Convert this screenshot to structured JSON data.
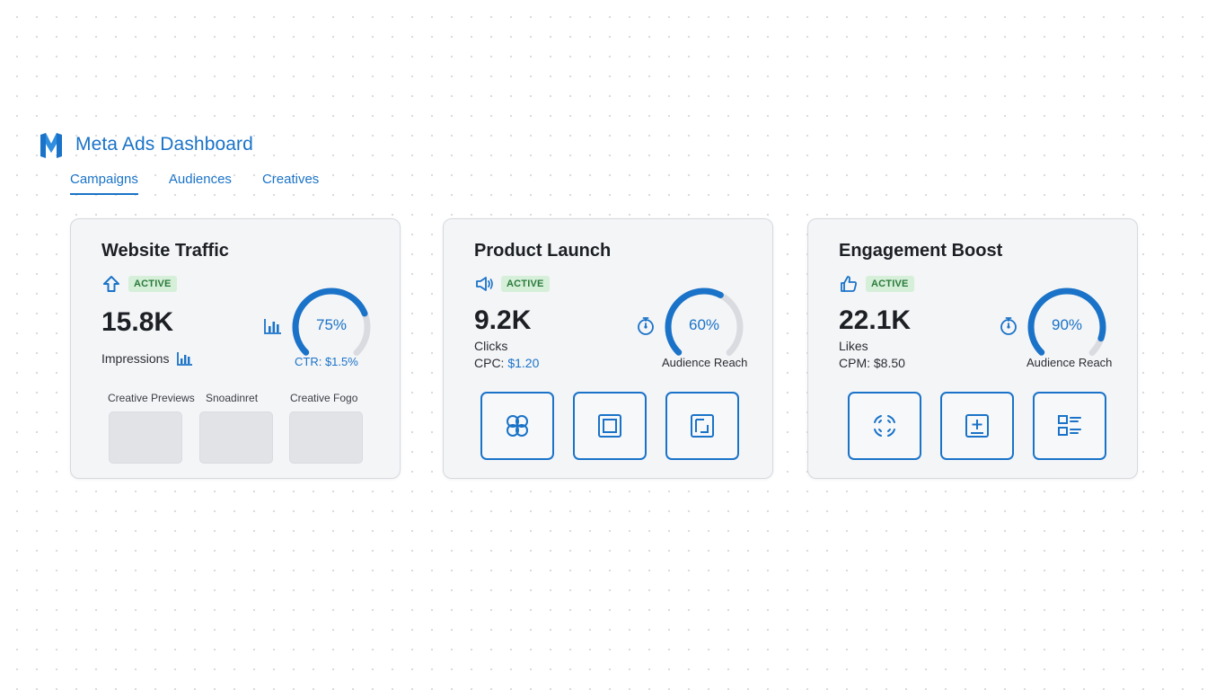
{
  "header": {
    "title": "Meta Ads Dashboard",
    "logo_icon": "meta-m-logo"
  },
  "tabs": [
    {
      "label": "Campaigns",
      "active": true
    },
    {
      "label": "Audiences",
      "active": false
    },
    {
      "label": "Creatives",
      "active": false
    }
  ],
  "colors": {
    "accent": "#1a73c8",
    "active_badge_bg": "#d6efd9",
    "active_badge_text": "#2a7a3a",
    "gauge_track": "#d9dbe0"
  },
  "cards": [
    {
      "title": "Website Traffic",
      "status_icon": "arrow-up-icon",
      "status": "ACTIVE",
      "value": "15.8K",
      "metric_label": "Impressions",
      "gauge_percent": 75,
      "gauge_text": "75%",
      "gauge_caption": "CTR: $1.5%",
      "previews": [
        "Creative Previews",
        "Snoadinret",
        "Creative Fogo"
      ]
    },
    {
      "title": "Product Launch",
      "status_icon": "megaphone-icon",
      "status": "ACTIVE",
      "value": "9.2K",
      "metric_label": "Clicks",
      "metric_sub_prefix": "CPC: ",
      "metric_sub_value": "$1.20",
      "gauge_percent": 60,
      "gauge_text": "60%",
      "gauge_caption": "Audience Reach",
      "actions": [
        "link-icon",
        "square-frame-icon",
        "image-crop-icon"
      ]
    },
    {
      "title": "Engagement Boost",
      "status_icon": "thumbs-up-icon",
      "status": "ACTIVE",
      "value": "22.1K",
      "metric_label": "Likes",
      "metric_sub": "CPM: $8.50",
      "gauge_percent": 90,
      "gauge_text": "90%",
      "gauge_caption": "Audience Reach",
      "actions": [
        "focus-frame-icon",
        "add-box-icon",
        "list-layout-icon"
      ]
    }
  ]
}
